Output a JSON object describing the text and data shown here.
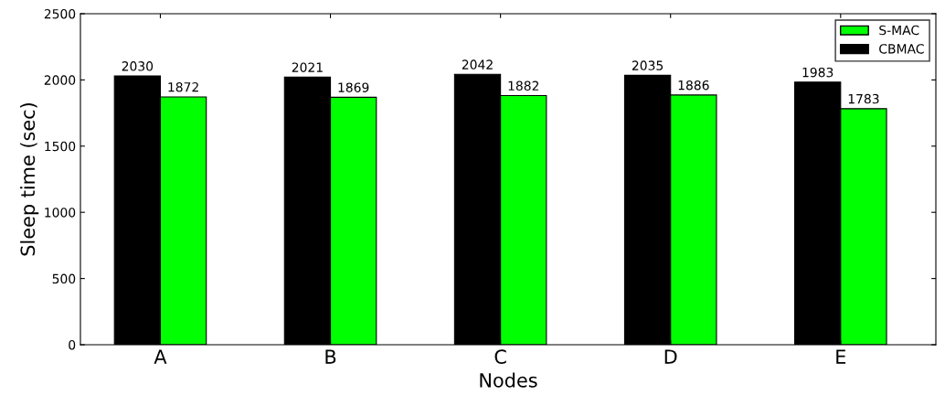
{
  "chart_data": {
    "type": "bar",
    "xlabel": "Nodes",
    "ylabel": "Sleep time (sec)",
    "categories": [
      "A",
      "B",
      "C",
      "D",
      "E"
    ],
    "series": [
      {
        "name": "CBMAC",
        "color": "#000000",
        "values": [
          2030,
          2021,
          2042,
          2035,
          1983
        ]
      },
      {
        "name": "S-MAC",
        "color": "#00ff00",
        "values": [
          1872,
          1869,
          1882,
          1886,
          1783
        ]
      }
    ],
    "ylim": [
      0,
      2500
    ],
    "yticks": [
      0,
      500,
      1000,
      1500,
      2000,
      2500
    ],
    "data_labels": true,
    "legend": "top right",
    "grid": false
  }
}
